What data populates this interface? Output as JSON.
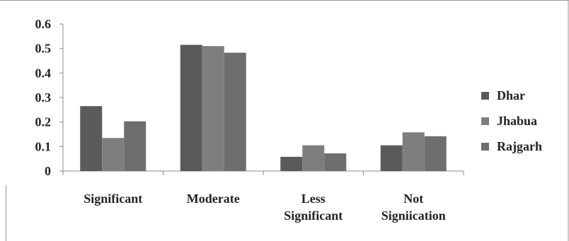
{
  "chart_data": {
    "type": "bar",
    "title": "",
    "xlabel": "",
    "ylabel": "",
    "categories": [
      [
        "Significant"
      ],
      [
        "Moderate"
      ],
      [
        "Less",
        "Significant"
      ],
      [
        "Not",
        "Signiication"
      ]
    ],
    "series": [
      {
        "name": "Dhar",
        "color": "#5a5a5a",
        "values": [
          0.265,
          0.515,
          0.058,
          0.105
        ]
      },
      {
        "name": "Jhabua",
        "color": "#7e7e7e",
        "values": [
          0.135,
          0.51,
          0.105,
          0.158
        ]
      },
      {
        "name": "Rajgarh",
        "color": "#6e6e6e",
        "values": [
          0.203,
          0.483,
          0.072,
          0.142
        ]
      }
    ],
    "ylim": [
      0,
      0.6
    ],
    "yticks": [
      "0",
      "0.1",
      "0.2",
      "0.3",
      "0.4",
      "0.5",
      "0.6"
    ],
    "grid": false,
    "legend_position": "right"
  }
}
